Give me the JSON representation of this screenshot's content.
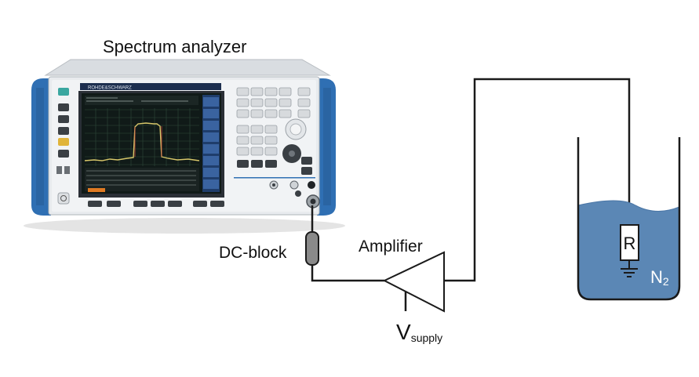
{
  "labels": {
    "spectrum_analyzer": "Spectrum analyzer",
    "dc_block": "DC-block",
    "amplifier": "Amplifier",
    "v_supply_main": "V",
    "v_supply_sub": "supply",
    "resistor": "R",
    "nitrogen_main": "N",
    "nitrogen_sub": "2"
  },
  "instrument": {
    "brand": "ROHDE&SCHWARZ"
  },
  "colors": {
    "wire": "#1a1a1a",
    "liquid": "#5b87b5",
    "liquid_edge": "#4a76a6",
    "analyzer_body": "#e8ebee",
    "analyzer_handles": "#2f6fb3",
    "analyzer_screen": "#101a18",
    "spectrum_trace": "#d8c76a",
    "dc_block_fill": "#8a8a8a"
  }
}
